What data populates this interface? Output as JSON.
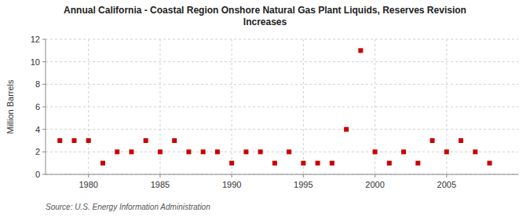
{
  "chart_data": {
    "type": "scatter",
    "title": "Annual California - Coastal Region Onshore Natural Gas Plant Liquids, Reserves Revision\nIncreases",
    "ylabel": "Million Barrels",
    "source": "Source: U.S. Energy Information Administration",
    "x": [
      1978,
      1979,
      1980,
      1981,
      1982,
      1983,
      1984,
      1985,
      1986,
      1987,
      1988,
      1989,
      1990,
      1991,
      1992,
      1993,
      1994,
      1995,
      1996,
      1997,
      1998,
      1999,
      2000,
      2001,
      2002,
      2003,
      2004,
      2005,
      2006,
      2007,
      2008
    ],
    "values": [
      3,
      3,
      3,
      1,
      2,
      2,
      3,
      2,
      3,
      2,
      2,
      2,
      1,
      2,
      2,
      1,
      2,
      1,
      1,
      1,
      4,
      11,
      2,
      1,
      2,
      1,
      3,
      2,
      3,
      2,
      1
    ],
    "color": "#cc0000",
    "marker": "square",
    "xlim": [
      1977,
      2010
    ],
    "ylim": [
      0,
      12
    ],
    "xticks": [
      1980,
      1985,
      1990,
      1995,
      2000,
      2005
    ],
    "yticks": [
      0,
      2,
      4,
      6,
      8,
      10,
      12
    ],
    "grid": true
  }
}
